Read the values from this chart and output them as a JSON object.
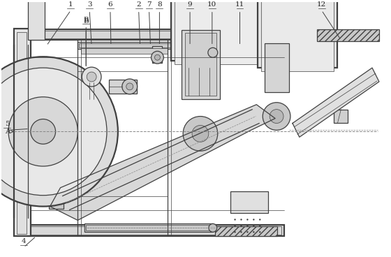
{
  "bg_color": "#ffffff",
  "line_color": "#404040",
  "label_color": "#222222",
  "figsize": [
    5.6,
    3.68
  ],
  "dpi": 100,
  "label_data": [
    [
      "1",
      100,
      10,
      65,
      63
    ],
    [
      "3",
      127,
      10,
      130,
      63
    ],
    [
      "B",
      122,
      32,
      122,
      95
    ],
    [
      "6",
      157,
      10,
      158,
      63
    ],
    [
      "2",
      198,
      10,
      200,
      63
    ],
    [
      "7",
      213,
      10,
      215,
      63
    ],
    [
      "8",
      228,
      10,
      228,
      63
    ],
    [
      "9",
      272,
      10,
      272,
      63
    ],
    [
      "10",
      304,
      10,
      304,
      63
    ],
    [
      "11",
      344,
      10,
      344,
      63
    ],
    [
      "12",
      462,
      10,
      490,
      55
    ],
    [
      "5",
      8,
      183,
      40,
      183
    ],
    [
      "4",
      32,
      352,
      50,
      338
    ]
  ]
}
